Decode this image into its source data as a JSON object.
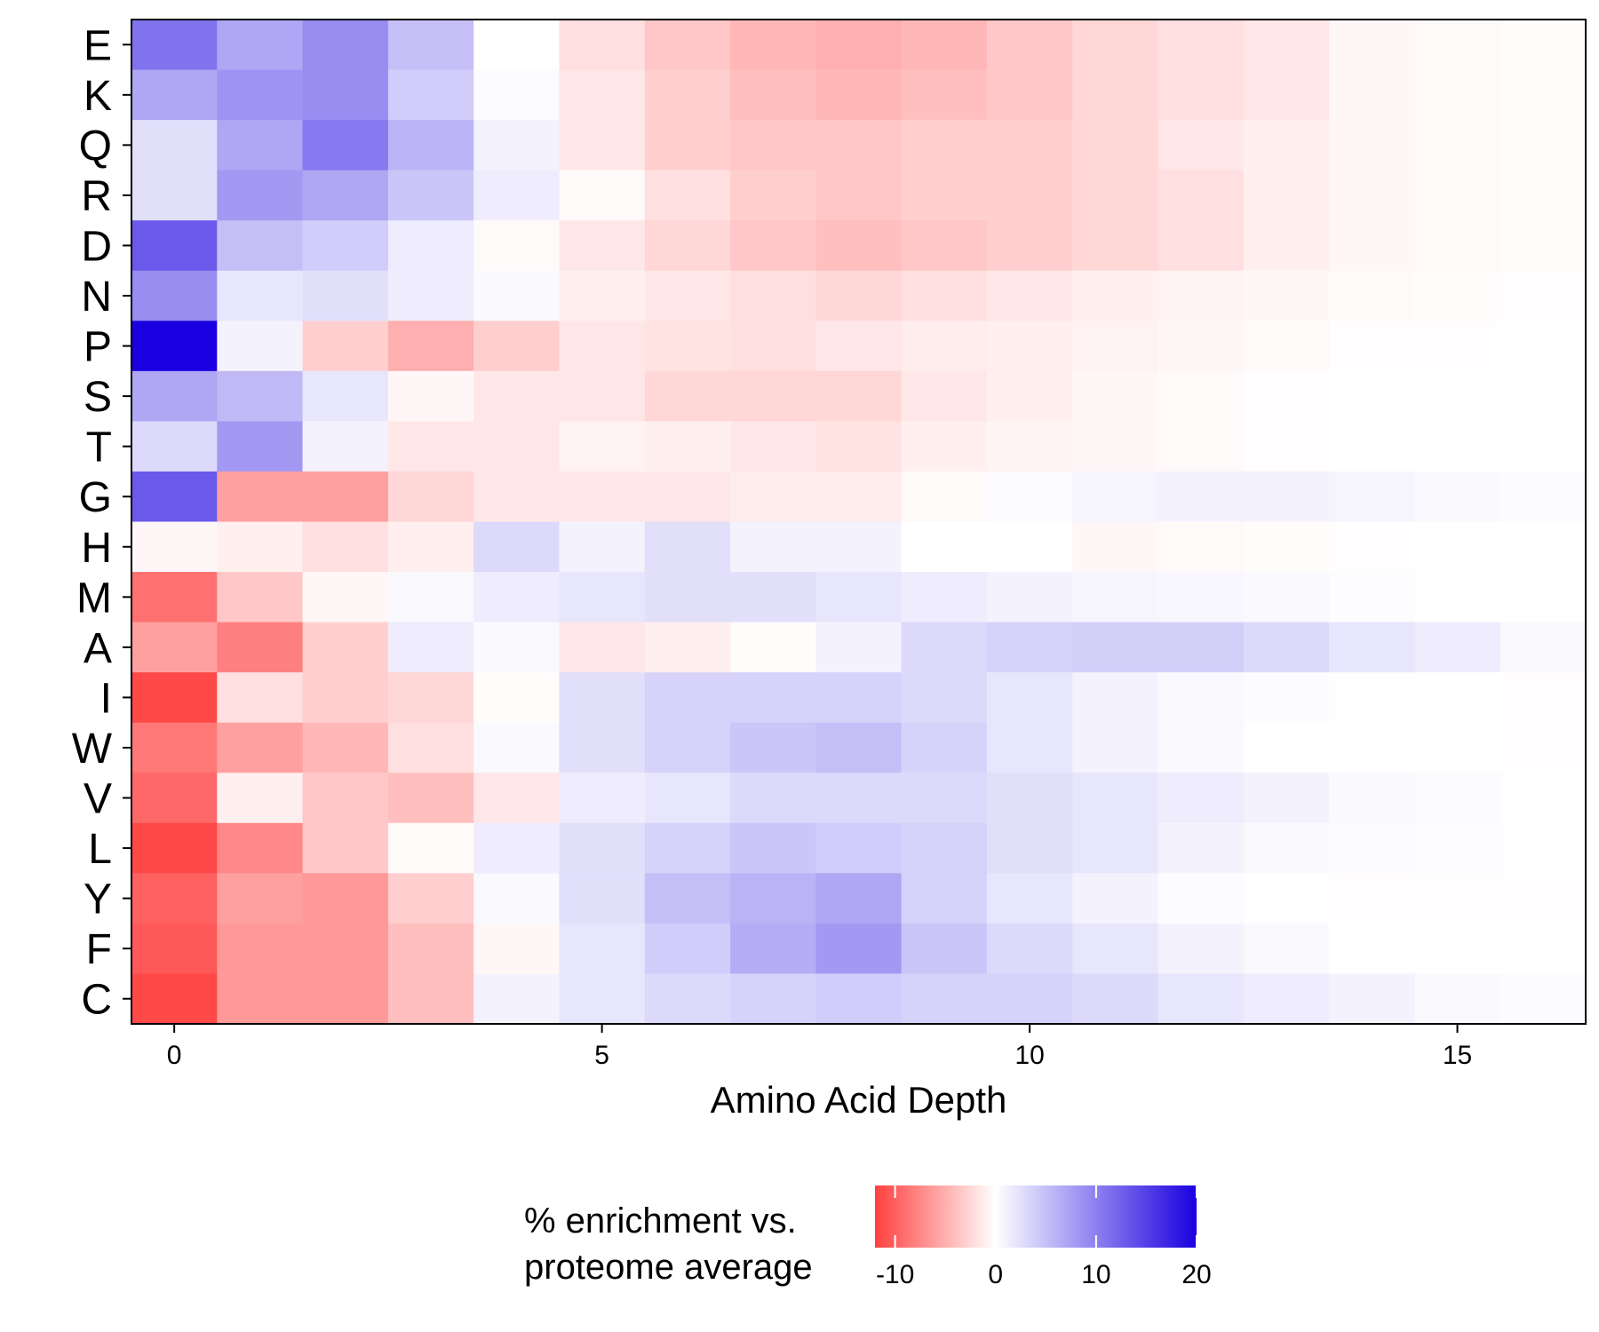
{
  "chart_data": {
    "type": "heatmap",
    "xlabel": "Amino Acid Depth",
    "ylabel": "",
    "x": [
      0,
      1,
      2,
      3,
      4,
      5,
      6,
      7,
      8,
      9,
      10,
      11,
      12,
      13,
      14,
      15,
      16
    ],
    "x_ticks": [
      0,
      5,
      10,
      15
    ],
    "xlim": [
      -0.5,
      16.5
    ],
    "rows": [
      "E",
      "K",
      "Q",
      "R",
      "D",
      "N",
      "P",
      "S",
      "T",
      "G",
      "H",
      "M",
      "A",
      "I",
      "W",
      "V",
      "L",
      "Y",
      "F",
      "C"
    ],
    "values": [
      [
        11,
        7,
        9,
        5,
        0,
        -2,
        -3.5,
        -4.5,
        -5,
        -4.5,
        -3.5,
        -2.5,
        -2,
        -1.5,
        -0.5,
        -0.3,
        -0.2
      ],
      [
        7,
        8.5,
        9,
        4,
        0.3,
        -1.5,
        -3,
        -4,
        -4.5,
        -4,
        -3.5,
        -2.5,
        -2,
        -1.5,
        -0.5,
        -0.3,
        -0.2
      ],
      [
        2.5,
        7,
        10.5,
        6,
        1,
        -1.5,
        -3,
        -3.5,
        -3.5,
        -3,
        -3,
        -2.5,
        -1.5,
        -1,
        -0.5,
        -0.3,
        -0.2
      ],
      [
        2.5,
        8,
        7,
        4.5,
        1.5,
        -0.3,
        -2,
        -3,
        -3.5,
        -3,
        -3,
        -2.5,
        -2,
        -1,
        -0.5,
        -0.3,
        -0.2
      ],
      [
        13,
        5,
        4,
        1.5,
        -0.3,
        -1.5,
        -2.5,
        -3.5,
        -4,
        -3.5,
        -3,
        -2.5,
        -2,
        -1,
        -0.5,
        -0.3,
        -0.2
      ],
      [
        9,
        2,
        2.5,
        1.5,
        0.5,
        -1,
        -1.5,
        -2,
        -2.5,
        -2,
        -1.5,
        -1,
        -0.8,
        -0.5,
        -0.3,
        -0.2,
        -0.1
      ],
      [
        20,
        1,
        -3,
        -5,
        -3,
        -1.5,
        -1.8,
        -2,
        -1.5,
        -1.2,
        -1,
        -0.8,
        -0.5,
        -0.3,
        -0.1,
        -0.1,
        0
      ],
      [
        7,
        5.5,
        2,
        -0.5,
        -1.5,
        -1.5,
        -2.5,
        -2.5,
        -2.5,
        -1.5,
        -1,
        -0.5,
        -0.3,
        -0.1,
        0,
        0,
        0
      ],
      [
        3,
        8,
        1,
        -1.5,
        -1.5,
        -0.8,
        -1,
        -1.5,
        -1.8,
        -1,
        -0.7,
        -0.5,
        -0.3,
        -0.1,
        0,
        0,
        0
      ],
      [
        13,
        -6,
        -6,
        -2.5,
        -1.5,
        -1.5,
        -1.5,
        -1.2,
        -1.2,
        -0.3,
        0.3,
        0.8,
        1,
        1,
        0.8,
        0.5,
        0.3
      ],
      [
        -0.5,
        -1,
        -2,
        -1,
        3,
        1,
        2.5,
        1,
        1,
        0,
        0,
        -0.5,
        -0.3,
        -0.2,
        -0.1,
        0,
        0
      ],
      [
        -9,
        -3.5,
        -0.5,
        0.5,
        1.5,
        2,
        2.5,
        2.5,
        2,
        1.5,
        1,
        0.8,
        0.6,
        0.4,
        0.2,
        0,
        0
      ],
      [
        -6,
        -8,
        -3,
        1.5,
        0.5,
        -1.5,
        -1,
        -0.2,
        1,
        3,
        3.5,
        3.8,
        3.8,
        3,
        2,
        1.5,
        0.5
      ],
      [
        -11.5,
        -2,
        -3,
        -2.5,
        -0.2,
        2.5,
        3.5,
        3.5,
        3.5,
        3,
        2,
        1,
        0.5,
        0.3,
        0.1,
        0,
        -0.1
      ],
      [
        -8.5,
        -6,
        -4.5,
        -2,
        0.5,
        2.5,
        3.5,
        4.5,
        5,
        3.5,
        2,
        1,
        0.5,
        0,
        0,
        0,
        -0.1
      ],
      [
        -9.5,
        -1,
        -3.5,
        -4,
        -1.5,
        1.5,
        2,
        3,
        3,
        3,
        2.5,
        2,
        1.5,
        1,
        0.5,
        0.3,
        0.1
      ],
      [
        -11.5,
        -7.5,
        -3.5,
        -0.3,
        1.5,
        2.5,
        3.5,
        4.5,
        4,
        3.5,
        2.5,
        2,
        1,
        0.5,
        0.3,
        0.2,
        0.1
      ],
      [
        -10,
        -6,
        -6.5,
        -3,
        0.5,
        2.5,
        5,
        6,
        7,
        3.5,
        2,
        1,
        0.3,
        0,
        -0.1,
        -0.1,
        -0.1
      ],
      [
        -10.5,
        -6.5,
        -6.5,
        -4,
        -0.5,
        2,
        4,
        6.5,
        8,
        4.5,
        3,
        2,
        1,
        0.5,
        0,
        0,
        0
      ],
      [
        -11.5,
        -6.5,
        -6.5,
        -4,
        1,
        2,
        3,
        3.5,
        4,
        3.5,
        3.5,
        3,
        2,
        1.5,
        1,
        0.5,
        0.3
      ]
    ],
    "colorbar": {
      "title": "% enrichment vs. proteome average",
      "title_lines": [
        "% enrichment vs.",
        "proteome average"
      ],
      "range": [
        -12,
        20
      ],
      "ticks": [
        "-10",
        "0",
        "10",
        "20"
      ],
      "tick_values": [
        -10,
        0,
        10,
        20
      ],
      "color_low": "#ff4040",
      "color_mid": "#ffffff",
      "color_high": "#1a00e0"
    },
    "grid": false,
    "legend_position": "bottom"
  }
}
